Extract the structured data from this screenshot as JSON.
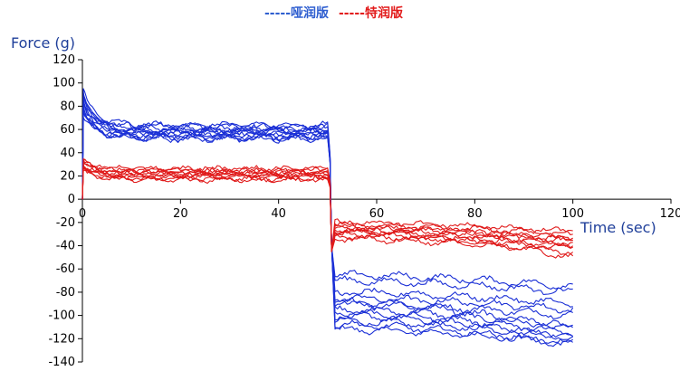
{
  "legend": {
    "blue": "-----哑润版",
    "red": "-----特润版"
  },
  "colors": {
    "blue": "#1a2fd6",
    "red": "#e01a1a",
    "axis": "#000000",
    "label": "#1f3f9a"
  },
  "chart_data": {
    "type": "line",
    "ylabel": "Force (g)",
    "xlabel": "Time (sec)",
    "xlim": [
      0,
      120
    ],
    "ylim": [
      -140,
      120
    ],
    "xticks": [
      0,
      20,
      40,
      60,
      80,
      100,
      120
    ],
    "yticks": [
      120,
      100,
      80,
      60,
      40,
      20,
      0,
      -20,
      -40,
      -60,
      -80,
      -100,
      -120,
      -140
    ],
    "grid": false,
    "series": [
      {
        "name": "哑润版",
        "color": "#1a2fd6",
        "curves": [
          {
            "peak": 92,
            "p1": 58,
            "p2": -112,
            "end": -124
          },
          {
            "peak": 88,
            "p1": 62,
            "p2": -105,
            "end": -118
          },
          {
            "peak": 85,
            "p1": 60,
            "p2": -95,
            "end": -110
          },
          {
            "peak": 80,
            "p1": 55,
            "p2": -90,
            "end": -100
          },
          {
            "peak": 78,
            "p1": 57,
            "p2": -100,
            "end": -120
          },
          {
            "peak": 75,
            "p1": 53,
            "p2": -85,
            "end": -95
          },
          {
            "peak": 90,
            "p1": 61,
            "p2": -80,
            "end": -90
          },
          {
            "peak": 95,
            "p1": 64,
            "p2": -70,
            "end": -80
          },
          {
            "peak": 82,
            "p1": 52,
            "p2": -65,
            "end": -75
          },
          {
            "peak": 70,
            "p1": 56,
            "p2": -98,
            "end": -115
          },
          {
            "peak": 86,
            "p1": 59,
            "p2": -108,
            "end": -125
          },
          {
            "peak": 76,
            "p1": 54,
            "p2": -88,
            "end": -112
          }
        ]
      },
      {
        "name": "特润版",
        "color": "#e01a1a",
        "curves": [
          {
            "peak": 30,
            "p1": 20,
            "p2": -22,
            "end": -30
          },
          {
            "peak": 28,
            "p1": 22,
            "p2": -25,
            "end": -35
          },
          {
            "peak": 32,
            "p1": 24,
            "p2": -28,
            "end": -38
          },
          {
            "peak": 27,
            "p1": 18,
            "p2": -30,
            "end": -42
          },
          {
            "peak": 25,
            "p1": 21,
            "p2": -20,
            "end": -28
          },
          {
            "peak": 35,
            "p1": 25,
            "p2": -26,
            "end": -33
          },
          {
            "peak": 29,
            "p1": 19,
            "p2": -32,
            "end": -40
          },
          {
            "peak": 31,
            "p1": 23,
            "p2": -24,
            "end": -36
          },
          {
            "peak": 26,
            "p1": 17,
            "p2": -34,
            "end": -45
          },
          {
            "peak": 33,
            "p1": 26,
            "p2": -27,
            "end": -50
          }
        ]
      }
    ]
  }
}
